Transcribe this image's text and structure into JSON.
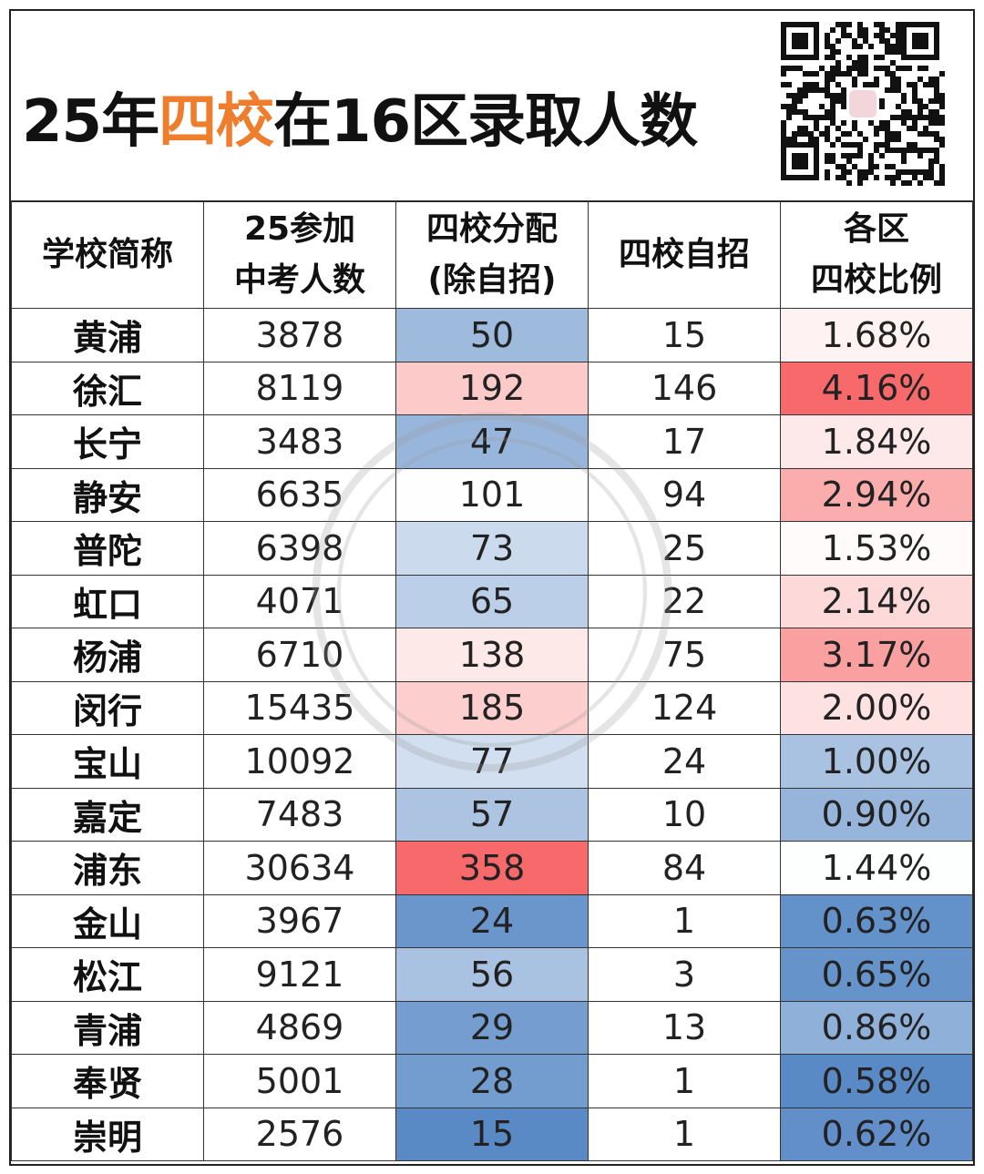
{
  "title": {
    "prefix": "25年",
    "highlight": "四校",
    "suffix": "在16区录取人数"
  },
  "colors": {
    "highlight": "#ee7d2e",
    "scale_low": "#5a8ac6",
    "scale_mid": "#ffffff",
    "scale_high": "#f8696b"
  },
  "qr": {
    "icon": "qr-code-icon"
  },
  "headers": [
    {
      "line1": "学校简称",
      "line2": ""
    },
    {
      "line1": "25参加",
      "line2": "中考人数"
    },
    {
      "line1": "四校分配",
      "line2": "(除自招)"
    },
    {
      "line1": "四校自招",
      "line2": ""
    },
    {
      "line1": "各区",
      "line2": "四校比例"
    }
  ],
  "color_scales": {
    "allocation": {
      "min": 15,
      "mid": 100,
      "max": 358
    },
    "ratio": {
      "min": 0.58,
      "mid": 1.45,
      "max": 4.16
    }
  },
  "rows": [
    {
      "district": "黄浦",
      "students": "3878",
      "allocation": "50",
      "self": "15",
      "ratio": "1.68%"
    },
    {
      "district": "徐汇",
      "students": "8119",
      "allocation": "192",
      "self": "146",
      "ratio": "4.16%"
    },
    {
      "district": "长宁",
      "students": "3483",
      "allocation": "47",
      "self": "17",
      "ratio": "1.84%"
    },
    {
      "district": "静安",
      "students": "6635",
      "allocation": "101",
      "self": "94",
      "ratio": "2.94%"
    },
    {
      "district": "普陀",
      "students": "6398",
      "allocation": "73",
      "self": "25",
      "ratio": "1.53%"
    },
    {
      "district": "虹口",
      "students": "4071",
      "allocation": "65",
      "self": "22",
      "ratio": "2.14%"
    },
    {
      "district": "杨浦",
      "students": "6710",
      "allocation": "138",
      "self": "75",
      "ratio": "3.17%"
    },
    {
      "district": "闵行",
      "students": "15435",
      "allocation": "185",
      "self": "124",
      "ratio": "2.00%"
    },
    {
      "district": "宝山",
      "students": "10092",
      "allocation": "77",
      "self": "24",
      "ratio": "1.00%"
    },
    {
      "district": "嘉定",
      "students": "7483",
      "allocation": "57",
      "self": "10",
      "ratio": "0.90%"
    },
    {
      "district": "浦东",
      "students": "30634",
      "allocation": "358",
      "self": "84",
      "ratio": "1.44%"
    },
    {
      "district": "金山",
      "students": "3967",
      "allocation": "24",
      "self": "1",
      "ratio": "0.63%"
    },
    {
      "district": "松江",
      "students": "9121",
      "allocation": "56",
      "self": "3",
      "ratio": "0.65%"
    },
    {
      "district": "青浦",
      "students": "4869",
      "allocation": "29",
      "self": "13",
      "ratio": "0.86%"
    },
    {
      "district": "奉贤",
      "students": "5001",
      "allocation": "28",
      "self": "1",
      "ratio": "0.58%"
    },
    {
      "district": "崇明",
      "students": "2576",
      "allocation": "15",
      "self": "1",
      "ratio": "0.62%"
    }
  ]
}
